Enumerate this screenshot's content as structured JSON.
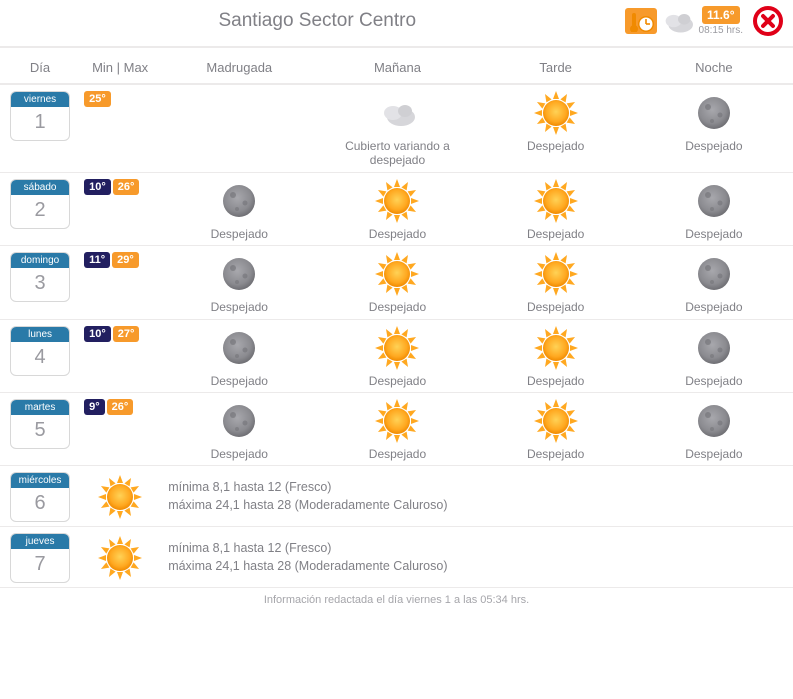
{
  "header": {
    "title": "Santiago Sector Centro",
    "current_temp": "11.6°",
    "current_time": "08:15 hrs.",
    "current_icon": "cloudy"
  },
  "columns": {
    "dia": "Día",
    "minmax": "Min | Max",
    "madrugada": "Madrugada",
    "manana": "Mañana",
    "tarde": "Tarde",
    "noche": "Noche"
  },
  "days": [
    {
      "weekday": "viernes",
      "daynum": "1",
      "min": null,
      "max": "25°",
      "periods": {
        "madrugada": null,
        "manana": {
          "icon": "cloudy",
          "label": "Cubierto variando a despejado"
        },
        "tarde": {
          "icon": "sun",
          "label": "Despejado"
        },
        "noche": {
          "icon": "moon",
          "label": "Despejado"
        }
      }
    },
    {
      "weekday": "sábado",
      "daynum": "2",
      "min": "10°",
      "max": "26°",
      "periods": {
        "madrugada": {
          "icon": "moon",
          "label": "Despejado"
        },
        "manana": {
          "icon": "sun",
          "label": "Despejado"
        },
        "tarde": {
          "icon": "sun",
          "label": "Despejado"
        },
        "noche": {
          "icon": "moon",
          "label": "Despejado"
        }
      }
    },
    {
      "weekday": "domingo",
      "daynum": "3",
      "min": "11°",
      "max": "29°",
      "periods": {
        "madrugada": {
          "icon": "moon",
          "label": "Despejado"
        },
        "manana": {
          "icon": "sun",
          "label": "Despejado"
        },
        "tarde": {
          "icon": "sun",
          "label": "Despejado"
        },
        "noche": {
          "icon": "moon",
          "label": "Despejado"
        }
      }
    },
    {
      "weekday": "lunes",
      "daynum": "4",
      "min": "10°",
      "max": "27°",
      "periods": {
        "madrugada": {
          "icon": "moon",
          "label": "Despejado"
        },
        "manana": {
          "icon": "sun",
          "label": "Despejado"
        },
        "tarde": {
          "icon": "sun",
          "label": "Despejado"
        },
        "noche": {
          "icon": "moon",
          "label": "Despejado"
        }
      }
    },
    {
      "weekday": "martes",
      "daynum": "5",
      "min": "9°",
      "max": "26°",
      "periods": {
        "madrugada": {
          "icon": "moon",
          "label": "Despejado"
        },
        "manana": {
          "icon": "sun",
          "label": "Despejado"
        },
        "tarde": {
          "icon": "sun",
          "label": "Despejado"
        },
        "noche": {
          "icon": "moon",
          "label": "Despejado"
        }
      }
    }
  ],
  "summaries": [
    {
      "weekday": "miércoles",
      "daynum": "6",
      "icon": "sun",
      "line1": "mínima 8,1 hasta 12 (Fresco)",
      "line2": "máxima 24,1 hasta 28 (Moderadamente Caluroso)"
    },
    {
      "weekday": "jueves",
      "daynum": "7",
      "icon": "sun",
      "line1": "mínima 8,1 hasta 12 (Fresco)",
      "line2": "máxima 24,1 hasta 28 (Moderadamente Caluroso)"
    }
  ],
  "footnote": "Información redactada el día viernes 1 a las 05:34 hrs.",
  "colors": {
    "accent_blue": "#2a7aa8",
    "accent_orange": "#f79a2b",
    "min_chip": "#221f60",
    "close_red": "#e00018",
    "text_gray": "#808086",
    "border_gray": "#eceaea"
  }
}
